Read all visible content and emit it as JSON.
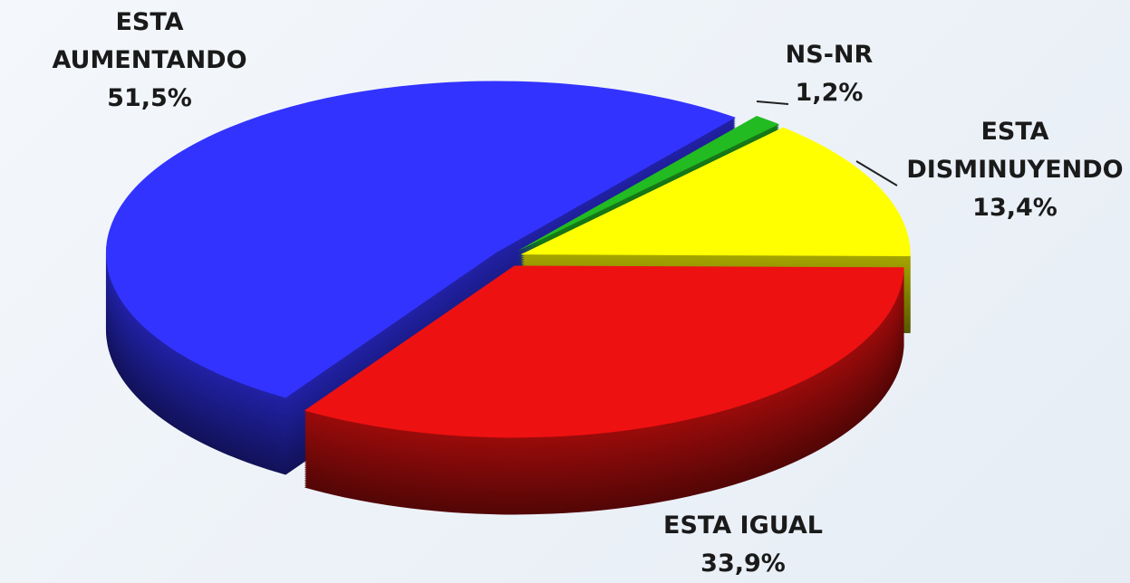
{
  "chart_data": {
    "type": "pie",
    "categories": [
      "ESTA AUMENTANDO",
      "NS-NR",
      "ESTA DISMINUYENDO",
      "ESTA IGUAL"
    ],
    "values": [
      51.5,
      1.2,
      13.4,
      33.9
    ],
    "value_labels": [
      "51,5%",
      "1,2%",
      "13,4%",
      "33,9%"
    ],
    "colors": [
      "#3333ff",
      "#22bb22",
      "#ffff00",
      "#ee1111"
    ]
  }
}
